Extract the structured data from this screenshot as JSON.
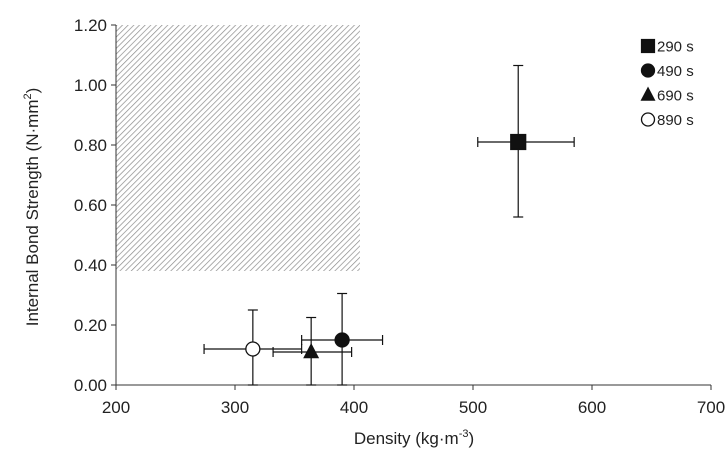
{
  "chart_data": {
    "type": "scatter",
    "title": "",
    "xlabel": "Density (kg·m",
    "xlabel_sup": "-3",
    "xlabel_end": ")",
    "ylabel": "Internal Bond Strength (N·mm",
    "ylabel_sup": "2",
    "ylabel_end": ")",
    "xlim": [
      200,
      700
    ],
    "ylim": [
      0,
      1.2
    ],
    "x_ticks": [
      {
        "value": 200,
        "label": "200"
      },
      {
        "value": 300,
        "label": "300"
      },
      {
        "value": 400,
        "label": "400"
      },
      {
        "value": 500,
        "label": "500"
      },
      {
        "value": 600,
        "label": "600"
      },
      {
        "value": 700,
        "label": "700"
      }
    ],
    "y_ticks": [
      {
        "value": 0,
        "label": "0.00"
      },
      {
        "value": 0.2,
        "label": "0.20"
      },
      {
        "value": 0.4,
        "label": "0.40"
      },
      {
        "value": 0.6,
        "label": "0.60"
      },
      {
        "value": 0.8,
        "label": "0.80"
      },
      {
        "value": 1.0,
        "label": "1.00"
      },
      {
        "value": 1.2,
        "label": "1.20"
      }
    ],
    "shaded_region": {
      "x": [
        200,
        405
      ],
      "y": [
        0.38,
        1.2
      ],
      "fill": "hatched gray"
    },
    "grid": false,
    "legend_position": "top-right",
    "series": [
      {
        "name": "290 s",
        "marker": "square",
        "fill": "#111111",
        "x": 538,
        "y": 0.81,
        "xerr_low": 504,
        "xerr_high": 585,
        "yerr_low": 0.56,
        "yerr_high": 1.065
      },
      {
        "name": "490 s",
        "marker": "circle",
        "fill": "#111111",
        "x": 390,
        "y": 0.15,
        "xerr_low": 356,
        "xerr_high": 424,
        "yerr_low": 0.0,
        "yerr_high": 0.305
      },
      {
        "name": "690 s",
        "marker": "triangle",
        "fill": "#111111",
        "x": 364,
        "y": 0.11,
        "xerr_low": 332,
        "xerr_high": 398,
        "yerr_low": 0.0,
        "yerr_high": 0.225
      },
      {
        "name": "890 s",
        "marker": "circle",
        "fill": "#ffffff",
        "x": 315,
        "y": 0.12,
        "xerr_low": 274,
        "xerr_high": 356,
        "yerr_low": 0.0,
        "yerr_high": 0.25
      }
    ]
  }
}
